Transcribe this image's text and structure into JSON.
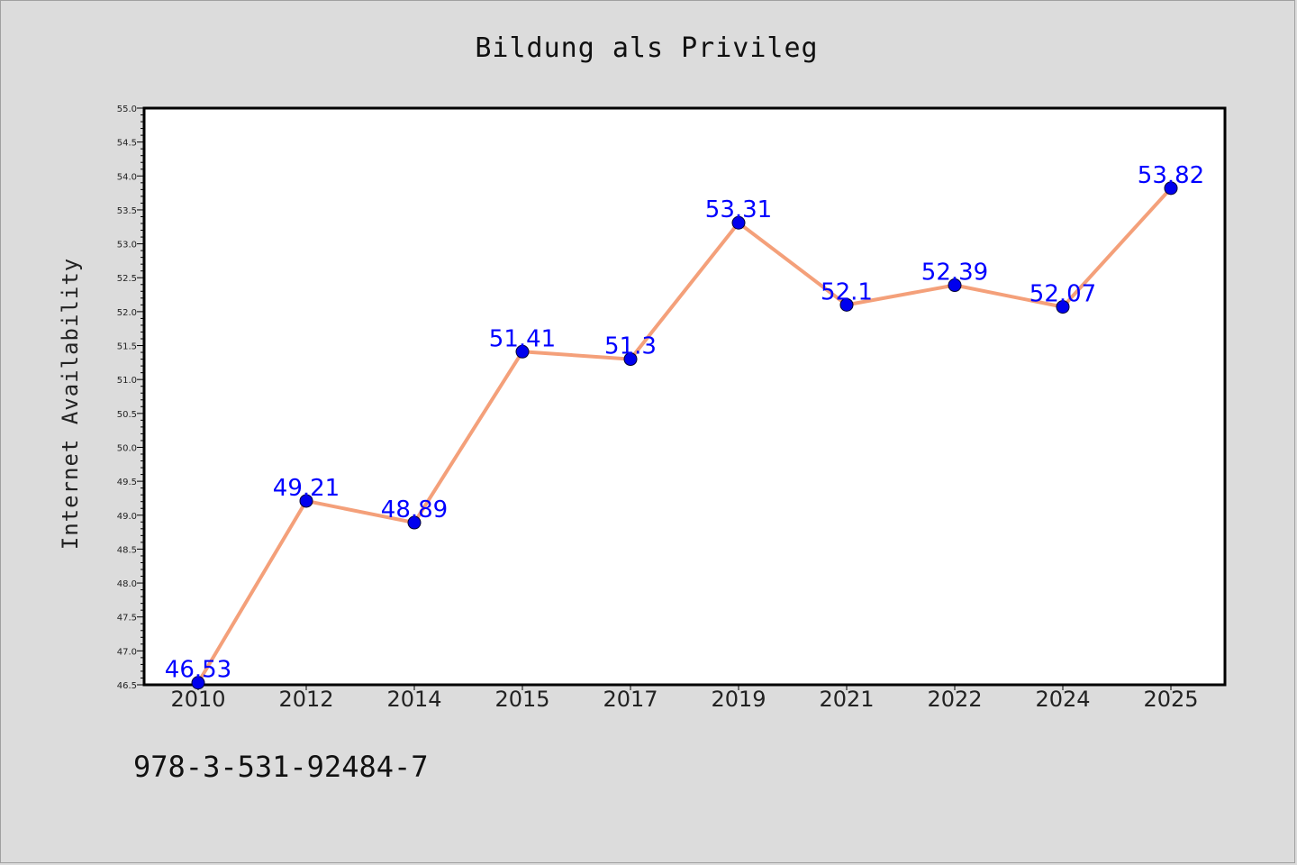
{
  "chart_data": {
    "type": "line",
    "title": "Bildung als Privileg",
    "xlabel": "",
    "ylabel": "Internet Availability",
    "categories": [
      "2010",
      "2012",
      "2014",
      "2015",
      "2017",
      "2019",
      "2021",
      "2022",
      "2024",
      "2025"
    ],
    "series": [
      {
        "values": [
          46.53,
          49.21,
          48.89,
          51.41,
          51.3,
          53.31,
          52.1,
          52.39,
          52.07,
          53.82
        ]
      }
    ],
    "data_labels": [
      "46.53",
      "49.21",
      "48.89",
      "51.41",
      "51.3",
      "53.31",
      "52.1",
      "52.39",
      "52.07",
      "53.82"
    ],
    "ylim": [
      46.5,
      55.0
    ],
    "yticks": [
      "46.5",
      "47.0",
      "47.5",
      "48.0",
      "48.5",
      "49.0",
      "49.5",
      "50.0",
      "50.5",
      "51.0",
      "51.5",
      "52.0",
      "52.5",
      "53.0",
      "53.5",
      "54.0",
      "54.5",
      "55.0"
    ],
    "grid": false,
    "line_color": "#f4a07a",
    "marker_color": "#0000ee",
    "label_color": "#0000ff"
  },
  "footer": {
    "isbn": "978-3-531-92484-7"
  }
}
